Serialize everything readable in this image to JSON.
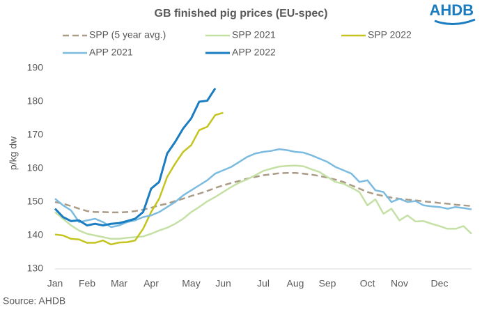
{
  "chart_data": {
    "type": "line",
    "title": "GB finished pig prices (EU-spec)",
    "logo": "AHDB",
    "y_label": "p/kg dw",
    "source": "Source: AHDB",
    "categories": [
      "Jan",
      null,
      null,
      null,
      "Feb",
      null,
      null,
      null,
      "Mar",
      null,
      null,
      null,
      "Apr",
      null,
      null,
      null,
      null,
      "May",
      null,
      null,
      null,
      "Jun",
      null,
      null,
      null,
      null,
      "Jul",
      null,
      null,
      null,
      "Aug",
      null,
      null,
      null,
      "Sep",
      null,
      null,
      null,
      null,
      "Oct",
      null,
      null,
      null,
      "Nov",
      null,
      null,
      null,
      null,
      "Dec",
      null,
      null,
      null,
      null
    ],
    "ylim": [
      130,
      190
    ],
    "yticks": [
      130,
      140,
      150,
      160,
      170,
      180,
      190
    ],
    "grid": false,
    "series": [
      {
        "name": "SPP (5 year avg.)",
        "color": "#aa9b86",
        "dashed": true,
        "values": [
          150,
          149.5,
          148.8,
          148,
          147.3,
          147,
          147,
          146.9,
          146.9,
          147,
          147.3,
          147.7,
          148.3,
          149,
          149.5,
          150.3,
          151,
          151.8,
          152.5,
          153.3,
          154.2,
          155,
          155.7,
          156.3,
          157,
          157.5,
          158,
          158.3,
          158.6,
          158.7,
          158.7,
          158.5,
          158.2,
          157.8,
          157.3,
          156.7,
          156,
          155,
          154,
          153,
          152.3,
          151.8,
          151.3,
          151,
          150.7,
          150.5,
          150.2,
          150,
          149.7,
          149.5,
          149.2,
          149,
          148.8
        ]
      },
      {
        "name": "SPP 2021",
        "color": "#c5e0a5",
        "dashed": false,
        "values": [
          147,
          145,
          143,
          141.5,
          140.5,
          140,
          139.5,
          139,
          139,
          139.3,
          139.5,
          139.7,
          140.5,
          141.5,
          142.3,
          143.5,
          145,
          147,
          148.5,
          150.2,
          151.5,
          153,
          154.5,
          155.8,
          156.8,
          158,
          159.3,
          160,
          160.6,
          160.8,
          160.9,
          160.7,
          159.8,
          159,
          157.5,
          156,
          155.5,
          154.3,
          153,
          149,
          150.8,
          146.5,
          148,
          144.5,
          146,
          144.2,
          144.3,
          143.5,
          142.8,
          142,
          142,
          142.8,
          140.5
        ]
      },
      {
        "name": "SPP 2022",
        "color": "#c4c41e",
        "dashed": false,
        "values": [
          140.3,
          140,
          139,
          138.8,
          137.8,
          137.8,
          138.5,
          137.3,
          137.9,
          138,
          138.5,
          142,
          147,
          151,
          157.5,
          161.5,
          165,
          167,
          171.5,
          172.5,
          176,
          176.7,
          null,
          null,
          null,
          null,
          null,
          null,
          null,
          null,
          null,
          null,
          null,
          null,
          null,
          null,
          null,
          null,
          null,
          null,
          null,
          null,
          null,
          null,
          null,
          null,
          null,
          null,
          null,
          null,
          null,
          null,
          null
        ]
      },
      {
        "name": "APP 2021",
        "color": "#7bbbe0",
        "dashed": false,
        "values": [
          151,
          149,
          147.5,
          144,
          144.5,
          145,
          144,
          142.5,
          143,
          144,
          144.5,
          145.5,
          146,
          147,
          148.5,
          150,
          152,
          153.5,
          155,
          156.5,
          158.5,
          159.5,
          160.5,
          162,
          163.5,
          164.5,
          165,
          165.3,
          165.8,
          165.5,
          165,
          164.8,
          164,
          163,
          162,
          160.5,
          159.5,
          158.5,
          156,
          156.5,
          153.5,
          153,
          150,
          151,
          150,
          150.3,
          149,
          148.7,
          148.5,
          148,
          148.5,
          148.2,
          147.8
        ]
      },
      {
        "name": "APP 2022",
        "color": "#1a7cc1",
        "dashed": false,
        "values": [
          148,
          145.5,
          144.3,
          144.5,
          143,
          143.5,
          143,
          143.5,
          143.7,
          144.3,
          145,
          147,
          154,
          156,
          164.5,
          168,
          172,
          175,
          180,
          180.3,
          184,
          null,
          null,
          null,
          null,
          null,
          null,
          null,
          null,
          null,
          null,
          null,
          null,
          null,
          null,
          null,
          null,
          null,
          null,
          null,
          null,
          null,
          null,
          null,
          null,
          null,
          null,
          null,
          null,
          null,
          null,
          null,
          null
        ]
      }
    ]
  }
}
